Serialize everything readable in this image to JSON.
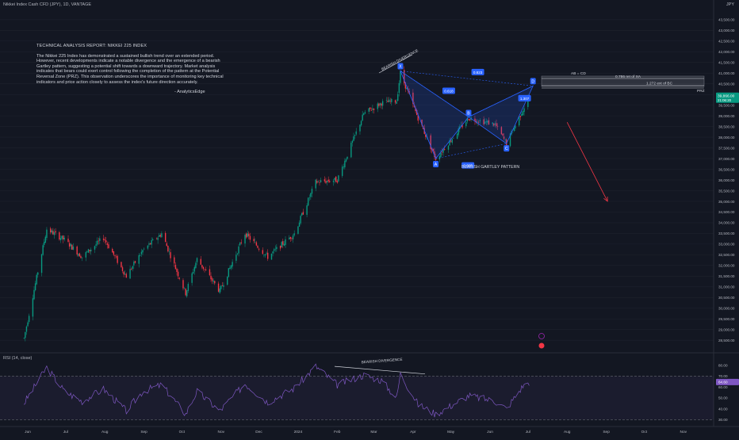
{
  "header": {
    "symbol": "Nikkei Index Cash CFD (JPY), 1D, VANTAGE",
    "currency": "JPY"
  },
  "report": {
    "title": "TECHNICAL ANALYSIS REPORT: NIKKEI 225 INDEX",
    "body": "The Nikkei 225 Index has demonstrated a sustained bullish trend over an extended period. However, recent developments indicate a notable divergence and the emergence of a bearish Gartley pattern, suggesting a potential shift towards a downward trajectory. Market analysis indicates that bears could exert control following the completion of the pattern at the Potential Reversal Zone (PRZ). This observation underscores the importance of monitoring key technical indicators and price action closely to assess the index's future direction accurately.",
    "signature": "- AnalyticsEdge"
  },
  "chart_data": {
    "type": "candlestick",
    "price_axis": {
      "range": [
        28100,
        43900
      ],
      "ticks": [
        28500,
        29000,
        29500,
        30000,
        30500,
        31000,
        31500,
        32000,
        32500,
        33000,
        33500,
        34000,
        34500,
        35000,
        35500,
        36000,
        36500,
        37000,
        37500,
        38000,
        38500,
        39000,
        39500,
        40000,
        40500,
        41000,
        41500,
        42000,
        42500,
        43000,
        43500
      ],
      "current_price": "39,866.00",
      "countdown": "21:06:20"
    },
    "time_axis": {
      "labels": [
        "Jun",
        "Jul",
        "Aug",
        "Sep",
        "Oct",
        "Nov",
        "Dec",
        "2024",
        "Feb",
        "Mar",
        "Apr",
        "May",
        "Jun",
        "Jul",
        "Aug",
        "Sep",
        "Oct",
        "Nov"
      ]
    },
    "price_path": [
      [
        "2023-05-29",
        28600
      ],
      [
        "2023-06-16",
        33700
      ],
      [
        "2023-06-30",
        33200
      ],
      [
        "2023-07-14",
        32400
      ],
      [
        "2023-07-31",
        33300
      ],
      [
        "2023-08-18",
        31500
      ],
      [
        "2023-08-31",
        32700
      ],
      [
        "2023-09-15",
        33500
      ],
      [
        "2023-10-04",
        30700
      ],
      [
        "2023-10-13",
        32300
      ],
      [
        "2023-10-31",
        30800
      ],
      [
        "2023-11-20",
        33500
      ],
      [
        "2023-12-08",
        32400
      ],
      [
        "2023-12-29",
        33500
      ],
      [
        "2024-01-15",
        35900
      ],
      [
        "2024-02-01",
        36000
      ],
      [
        "2024-02-22",
        39100
      ],
      [
        "2024-03-07",
        39600
      ],
      [
        "2024-03-19",
        39700
      ],
      [
        "2024-03-22",
        41000
      ],
      [
        "2024-04-05",
        38900
      ],
      [
        "2024-04-19",
        37000
      ],
      [
        "2024-05-15",
        38900
      ],
      [
        "2024-06-05",
        38600
      ],
      [
        "2024-06-14",
        37700
      ],
      [
        "2024-06-27",
        39300
      ],
      [
        "2024-07-02",
        39866
      ]
    ],
    "pattern": {
      "name": "BEARISH GARTLEY PATTERN",
      "points": {
        "X": [
          "2024-03-22",
          41100
        ],
        "A": [
          "2024-04-19",
          37000
        ],
        "B": [
          "2024-05-15",
          38950
        ],
        "C": [
          "2024-06-14",
          37700
        ],
        "D": [
          "2024-07-05",
          40400
        ]
      },
      "ratios": [
        "0.618",
        "0.823",
        "1.307",
        "0.665"
      ],
      "labels": {
        "ab_cd": "AB = CD",
        "xa_ret": "0.786 ret of XA",
        "bc_ext": "1.272 ext of BC",
        "prz": "PRZ",
        "divergence": "BEARISH DIVERGENCE"
      }
    },
    "projection": {
      "from": [
        "2024-08-01",
        38700
      ],
      "to": [
        "2024-09-02",
        35000
      ]
    },
    "rsi": {
      "label": "RSI (14, close)",
      "range": [
        28,
        82
      ],
      "ticks": [
        30,
        40,
        50,
        60,
        70,
        80
      ],
      "upper_band": 70,
      "lower_band": 30,
      "current": "64.60",
      "path": [
        [
          "2023-05-29",
          45
        ],
        [
          "2023-06-16",
          78
        ],
        [
          "2023-06-30",
          56
        ],
        [
          "2023-07-14",
          47
        ],
        [
          "2023-07-31",
          58
        ],
        [
          "2023-08-18",
          38
        ],
        [
          "2023-08-31",
          56
        ],
        [
          "2023-09-15",
          62
        ],
        [
          "2023-10-04",
          35
        ],
        [
          "2023-10-13",
          56
        ],
        [
          "2023-10-31",
          38
        ],
        [
          "2023-11-20",
          63
        ],
        [
          "2023-12-08",
          46
        ],
        [
          "2023-12-29",
          59
        ],
        [
          "2024-01-15",
          79
        ],
        [
          "2024-02-01",
          62
        ],
        [
          "2024-02-22",
          71
        ],
        [
          "2024-03-07",
          66
        ],
        [
          "2024-03-19",
          50
        ],
        [
          "2024-03-22",
          72
        ],
        [
          "2024-04-05",
          44
        ],
        [
          "2024-04-19",
          35
        ],
        [
          "2024-05-15",
          52
        ],
        [
          "2024-06-05",
          47
        ],
        [
          "2024-06-14",
          40
        ],
        [
          "2024-06-27",
          61
        ],
        [
          "2024-07-02",
          64.6
        ]
      ]
    }
  },
  "colors": {
    "background": "#131722",
    "bull": "#089981",
    "bear": "#f23645",
    "pattern": "#2962ff",
    "rsi": "#7e57c2",
    "price_tag": "#089981",
    "projection": "#f23645"
  }
}
